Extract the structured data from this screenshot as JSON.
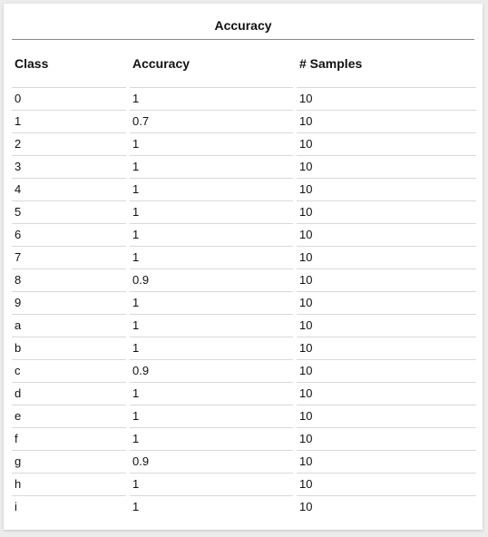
{
  "title": "Accuracy",
  "table": {
    "headers": [
      "Class",
      "Accuracy",
      "# Samples"
    ],
    "rows": [
      [
        "0",
        "1",
        "10"
      ],
      [
        "1",
        "0.7",
        "10"
      ],
      [
        "2",
        "1",
        "10"
      ],
      [
        "3",
        "1",
        "10"
      ],
      [
        "4",
        "1",
        "10"
      ],
      [
        "5",
        "1",
        "10"
      ],
      [
        "6",
        "1",
        "10"
      ],
      [
        "7",
        "1",
        "10"
      ],
      [
        "8",
        "0.9",
        "10"
      ],
      [
        "9",
        "1",
        "10"
      ],
      [
        "a",
        "1",
        "10"
      ],
      [
        "b",
        "1",
        "10"
      ],
      [
        "c",
        "0.9",
        "10"
      ],
      [
        "d",
        "1",
        "10"
      ],
      [
        "e",
        "1",
        "10"
      ],
      [
        "f",
        "1",
        "10"
      ],
      [
        "g",
        "0.9",
        "10"
      ],
      [
        "h",
        "1",
        "10"
      ],
      [
        "i",
        "1",
        "10"
      ]
    ]
  }
}
